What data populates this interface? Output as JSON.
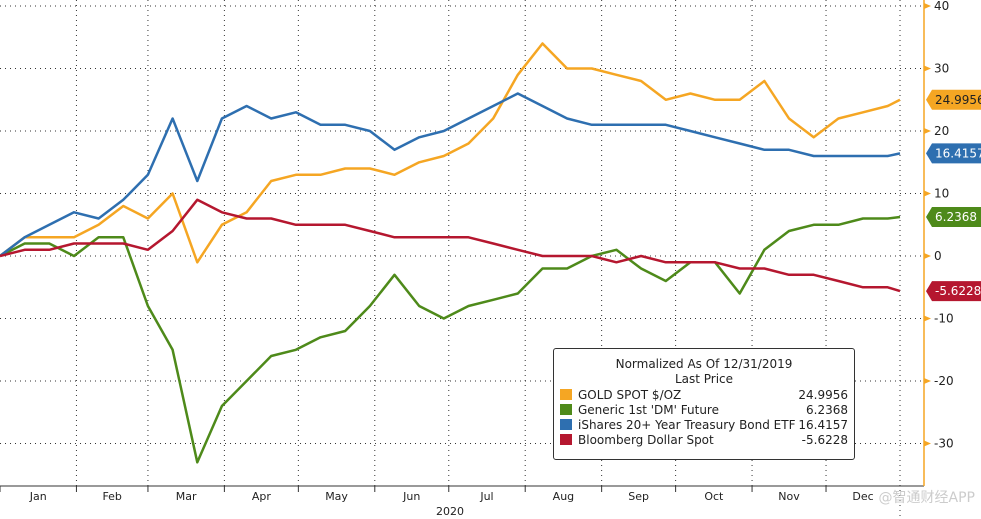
{
  "chart_data": {
    "type": "line",
    "x": [
      "2020-01-01",
      "2020-01-11",
      "2020-01-21",
      "2020-01-31",
      "2020-02-10",
      "2020-02-20",
      "2020-03-01",
      "2020-03-11",
      "2020-03-21",
      "2020-03-31",
      "2020-04-10",
      "2020-04-20",
      "2020-04-30",
      "2020-05-10",
      "2020-05-20",
      "2020-05-30",
      "2020-06-09",
      "2020-06-19",
      "2020-06-29",
      "2020-07-09",
      "2020-07-19",
      "2020-07-29",
      "2020-08-08",
      "2020-08-18",
      "2020-08-28",
      "2020-09-07",
      "2020-09-17",
      "2020-09-27",
      "2020-10-07",
      "2020-10-17",
      "2020-10-27",
      "2020-11-06",
      "2020-11-16",
      "2020-11-26",
      "2020-12-06",
      "2020-12-16",
      "2020-12-26",
      "2020-12-31"
    ],
    "series": [
      {
        "name": "GOLD SPOT $/OZ",
        "color": "#f5a623",
        "last": "24.9956",
        "values": [
          0,
          3,
          3,
          3,
          5,
          8,
          6,
          10,
          -1,
          5,
          7,
          12,
          13,
          13,
          14,
          14,
          13,
          15,
          16,
          18,
          22,
          29,
          34,
          30,
          30,
          29,
          28,
          25,
          26,
          25,
          25,
          28,
          22,
          19,
          22,
          23,
          24,
          24.9956
        ]
      },
      {
        "name": "Generic 1st 'DM' Future",
        "color": "#4e8a1a",
        "last": "6.2368",
        "values": [
          0,
          2,
          2,
          0,
          3,
          3,
          -8,
          -15,
          -33,
          -24,
          -20,
          -16,
          -15,
          -13,
          -12,
          -8,
          -3,
          -8,
          -10,
          -8,
          -7,
          -6,
          -2,
          -2,
          0,
          1,
          -2,
          -4,
          -1,
          -1,
          -6,
          1,
          4,
          5,
          5,
          6,
          6,
          6.2368
        ]
      },
      {
        "name": "iShares 20+ Year Treasury Bond ETF",
        "color": "#2e6fb0",
        "last": "16.4157",
        "values": [
          0,
          3,
          5,
          7,
          6,
          9,
          13,
          22,
          12,
          22,
          24,
          22,
          23,
          21,
          21,
          20,
          17,
          19,
          20,
          22,
          24,
          26,
          24,
          22,
          21,
          21,
          21,
          21,
          20,
          19,
          18,
          17,
          17,
          16,
          16,
          16,
          16,
          16.4157
        ]
      },
      {
        "name": "Bloomberg Dollar Spot",
        "color": "#b5172f",
        "last": "-5.6228",
        "values": [
          0,
          1,
          1,
          2,
          2,
          2,
          1,
          4,
          9,
          7,
          6,
          6,
          5,
          5,
          5,
          4,
          3,
          3,
          3,
          3,
          2,
          1,
          0,
          0,
          0,
          -1,
          0,
          -1,
          -1,
          -1,
          -2,
          -2,
          -3,
          -3,
          -4,
          -5,
          -5,
          -5.6228
        ]
      }
    ],
    "ylim": [
      -36,
      40
    ],
    "yticks": [
      "40",
      "30",
      "20",
      "10",
      "0",
      "-10",
      "-20",
      "-30"
    ],
    "months": [
      "Jan",
      "Feb",
      "Mar",
      "Apr",
      "May",
      "Jun",
      "Jul",
      "Aug",
      "Sep",
      "Oct",
      "Nov",
      "Dec"
    ],
    "xlabel": "2020",
    "grid": true,
    "legend_position": "bottom-right",
    "axis_color": "#f5a623"
  },
  "legend": {
    "title": "Normalized As Of 12/31/2019",
    "subtitle": "Last Price"
  },
  "watermark": "@智通财经APP"
}
